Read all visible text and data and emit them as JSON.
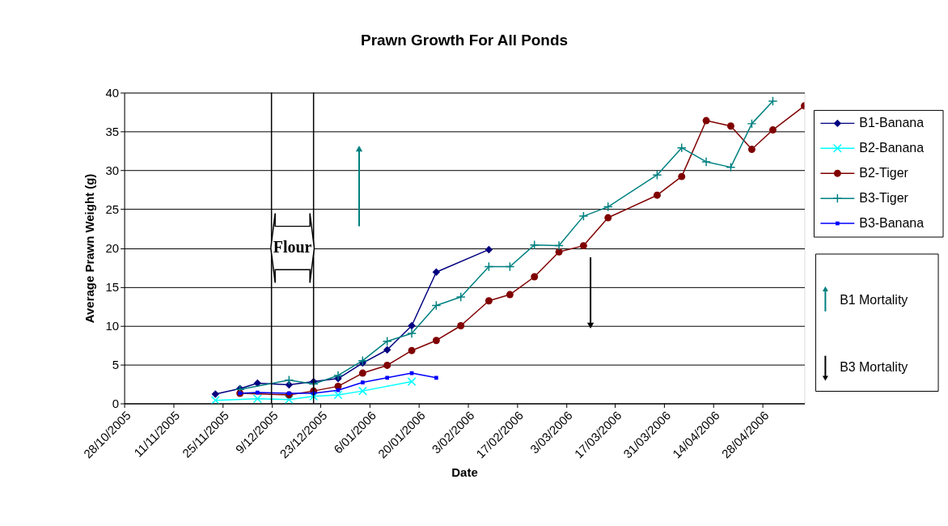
{
  "chart_data": {
    "type": "line",
    "title": "Prawn Growth For All Ponds",
    "xlabel": "Date",
    "ylabel": "Average Prawn Weight (g)",
    "xlim": [
      "2005-10-28",
      "2006-05-10"
    ],
    "xticks": [
      {
        "value": "2005-10-28",
        "label": "28/10/2005"
      },
      {
        "value": "2005-11-11",
        "label": "11/11/2005"
      },
      {
        "value": "2005-11-25",
        "label": "25/11/2005"
      },
      {
        "value": "2005-12-09",
        "label": "9/12/2005"
      },
      {
        "value": "2005-12-23",
        "label": "23/12/2005"
      },
      {
        "value": "2006-01-06",
        "label": "6/01/2006"
      },
      {
        "value": "2006-01-20",
        "label": "20/01/2006"
      },
      {
        "value": "2006-02-03",
        "label": "3/02/2006"
      },
      {
        "value": "2006-02-17",
        "label": "17/02/2006"
      },
      {
        "value": "2006-03-03",
        "label": "3/03/2006"
      },
      {
        "value": "2006-03-17",
        "label": "17/03/2006"
      },
      {
        "value": "2006-03-31",
        "label": "31/03/2006"
      },
      {
        "value": "2006-04-14",
        "label": "14/04/2006"
      },
      {
        "value": "2006-04-28",
        "label": "28/04/2006"
      }
    ],
    "ylim": [
      0,
      40
    ],
    "yticks": [
      0,
      5,
      10,
      15,
      20,
      25,
      30,
      35,
      40
    ],
    "grid": "y",
    "legend": "right",
    "line_style": "solid",
    "series": [
      {
        "name": "B1-Banana",
        "color": "#000080",
        "marker": "diamond",
        "x": [
          "2005-11-23",
          "2005-11-30",
          "2005-12-05",
          "2005-12-14",
          "2005-12-21",
          "2005-12-28",
          "2006-01-04",
          "2006-01-11",
          "2006-01-18",
          "2006-01-25",
          "2006-02-09"
        ],
        "values": [
          1.2,
          1.9,
          2.6,
          2.4,
          2.8,
          3.2,
          5.2,
          6.9,
          10.0,
          16.9,
          19.8
        ]
      },
      {
        "name": "B2-Banana",
        "color": "#00ffff",
        "marker": "cross",
        "x": [
          "2005-11-23",
          "2005-12-05",
          "2005-12-14",
          "2005-12-21",
          "2005-12-28",
          "2006-01-04",
          "2006-01-18"
        ],
        "values": [
          0.4,
          0.6,
          0.5,
          0.9,
          1.1,
          1.6,
          2.8
        ]
      },
      {
        "name": "B2-Tiger",
        "color": "#800000",
        "marker": "circle",
        "x": [
          "2005-11-30",
          "2005-12-14",
          "2005-12-21",
          "2005-12-28",
          "2006-01-04",
          "2006-01-11",
          "2006-01-18",
          "2006-01-25",
          "2006-02-01",
          "2006-02-09",
          "2006-02-15",
          "2006-02-22",
          "2006-03-01",
          "2006-03-08",
          "2006-03-15",
          "2006-03-29",
          "2006-04-05",
          "2006-04-12",
          "2006-04-19",
          "2006-04-25",
          "2006-05-01",
          "2006-05-10"
        ],
        "values": [
          1.3,
          1.1,
          1.6,
          2.2,
          3.9,
          4.9,
          6.8,
          8.1,
          10.0,
          13.2,
          14.0,
          16.3,
          19.5,
          20.3,
          23.9,
          26.8,
          29.2,
          36.4,
          35.7,
          32.7,
          35.2,
          38.3
        ]
      },
      {
        "name": "B3-Tiger",
        "color": "#008080",
        "marker": "plus",
        "x": [
          "2005-11-30",
          "2005-12-14",
          "2005-12-21",
          "2005-12-28",
          "2006-01-04",
          "2006-01-11",
          "2006-01-18",
          "2006-01-25",
          "2006-02-01",
          "2006-02-09",
          "2006-02-15",
          "2006-02-22",
          "2006-03-01",
          "2006-03-08",
          "2006-03-15",
          "2006-03-29",
          "2006-04-05",
          "2006-04-12",
          "2006-04-19",
          "2006-04-25",
          "2006-05-01"
        ],
        "values": [
          1.8,
          3.0,
          2.5,
          3.6,
          5.5,
          8.0,
          9.0,
          12.6,
          13.7,
          17.6,
          17.6,
          20.4,
          20.3,
          24.1,
          25.3,
          29.4,
          32.9,
          31.1,
          30.4,
          36.0,
          38.9
        ]
      },
      {
        "name": "B3-Banana",
        "color": "#0000ff",
        "marker": "square",
        "x": [
          "2005-11-30",
          "2005-12-05",
          "2005-12-14",
          "2005-12-21",
          "2005-12-28",
          "2006-01-04",
          "2006-01-11",
          "2006-01-18",
          "2006-01-25"
        ],
        "values": [
          1.3,
          1.4,
          1.3,
          1.3,
          1.7,
          2.7,
          3.3,
          3.9,
          3.3
        ]
      }
    ],
    "ref_lines": [
      {
        "axis": "x",
        "value": "2005-12-09",
        "color": "#000000"
      },
      {
        "axis": "x",
        "value": "2005-12-21",
        "color": "#000000"
      },
      {
        "axis": "x",
        "value": "2006-01-03",
        "label": "B1 Mortality",
        "color": "#008080"
      },
      {
        "axis": "x",
        "value": "2006-03-10",
        "label": "B3 Mortality",
        "color": "#000000"
      }
    ],
    "annotations": [
      "Flour"
    ]
  }
}
